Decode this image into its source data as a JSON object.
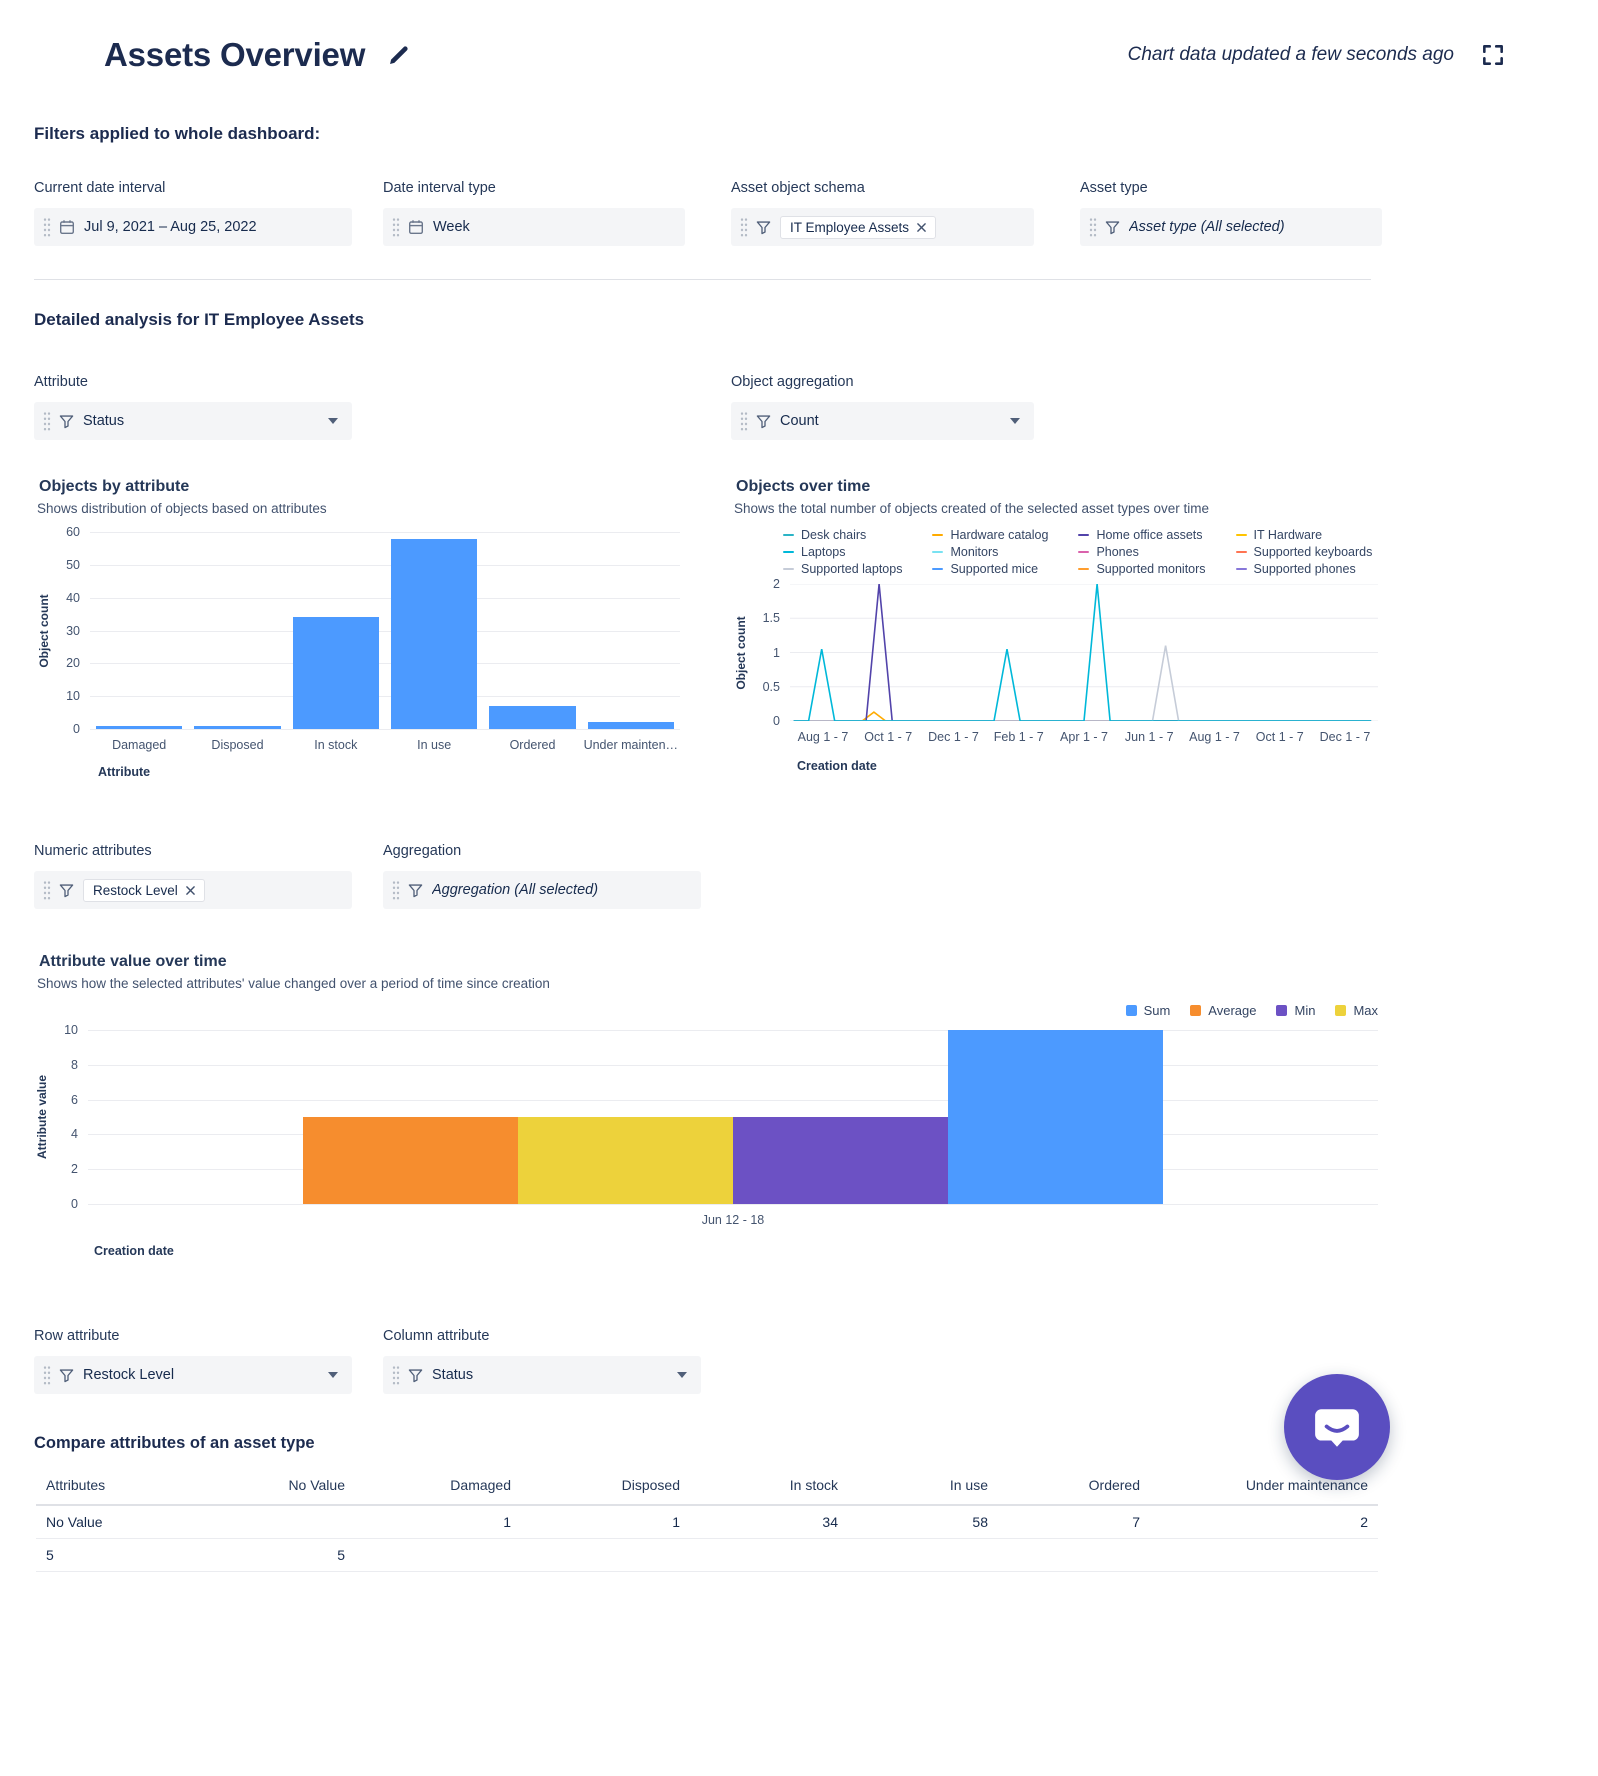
{
  "header": {
    "title": "Assets Overview",
    "updated_text": "Chart data updated a few seconds ago"
  },
  "filters_section": {
    "heading": "Filters applied to whole dashboard:",
    "date_interval": {
      "label": "Current date interval",
      "value": "Jul 9, 2021  –  Aug 25, 2022"
    },
    "interval_type": {
      "label": "Date interval type",
      "value": "Week"
    },
    "object_schema": {
      "label": "Asset object schema",
      "chip": "IT Employee Assets"
    },
    "asset_type": {
      "label": "Asset type",
      "value": "Asset type (All selected)"
    }
  },
  "analysis_section": {
    "heading": "Detailed analysis for IT Employee Assets",
    "attribute_filter": {
      "label": "Attribute",
      "value": "Status"
    },
    "object_aggregation": {
      "label": "Object aggregation",
      "value": "Count"
    },
    "numeric_attributes": {
      "label": "Numeric attributes",
      "chip": "Restock Level"
    },
    "aggregation": {
      "label": "Aggregation",
      "value": "Aggregation (All selected)"
    },
    "row_attribute": {
      "label": "Row attribute",
      "value": "Restock Level"
    },
    "column_attribute": {
      "label": "Column attribute",
      "value": "Status"
    }
  },
  "chart_data": [
    {
      "type": "bar",
      "title": "Objects by attribute",
      "subtitle": "Shows distribution of objects based on attributes",
      "categories": [
        "Damaged",
        "Disposed",
        "In stock",
        "In use",
        "Ordered",
        "Under mainten…"
      ],
      "values": [
        1,
        1,
        34,
        58,
        7,
        2
      ],
      "xlabel": "Attribute",
      "ylabel": "Object count",
      "ylim": [
        0,
        60
      ],
      "yticks": [
        0,
        10,
        20,
        30,
        40,
        50,
        60
      ],
      "bar_color": "#4C9AFF",
      "grid": true,
      "legend_position": "none"
    },
    {
      "type": "line",
      "title": "Objects over time",
      "subtitle": "Shows the total number of objects created of the selected asset types over time",
      "xlabel": "Creation date",
      "ylabel": "Object count",
      "ylim": [
        0,
        2
      ],
      "yticks": [
        0,
        0.5,
        1,
        1.5,
        2
      ],
      "xticks": [
        "Aug 1 - 7",
        "Oct 1 - 7",
        "Dec 1 - 7",
        "Feb 1 - 7",
        "Apr 1 - 7",
        "Jun 1 - 7",
        "Aug 1 - 7",
        "Oct 1 - 7",
        "Dec 1 - 7"
      ],
      "grid": true,
      "legend_position": "top",
      "legend": [
        {
          "name": "Desk chairs",
          "color": "#2BB4C6"
        },
        {
          "name": "Hardware catalog",
          "color": "#FFAB00"
        },
        {
          "name": "Home office assets",
          "color": "#5243AA"
        },
        {
          "name": "IT Hardware",
          "color": "#FFC400"
        },
        {
          "name": "Laptops",
          "color": "#00B8D9"
        },
        {
          "name": "Monitors",
          "color": "#79E2F2"
        },
        {
          "name": "Phones",
          "color": "#DA62AC"
        },
        {
          "name": "Supported keyboards",
          "color": "#FF7452"
        },
        {
          "name": "Supported laptops",
          "color": "#C6CCD8"
        },
        {
          "name": "Supported mice",
          "color": "#4C9AFF"
        },
        {
          "name": "Supported monitors",
          "color": "#FF9D2E"
        },
        {
          "name": "Supported phones",
          "color": "#8777D9"
        }
      ],
      "series": [
        {
          "name": "Supported phones",
          "points": [
            [
              -0.45,
              0
            ],
            [
              8.4,
              0
            ]
          ]
        },
        {
          "name": "Supported mice",
          "points": [
            [
              -0.45,
              0
            ],
            [
              8.4,
              0
            ]
          ]
        },
        {
          "name": "Hardware catalog",
          "points": [
            [
              -0.45,
              0
            ],
            [
              0.6,
              0
            ],
            [
              0.78,
              0.13
            ],
            [
              0.96,
              0
            ],
            [
              8.4,
              0
            ]
          ]
        },
        {
          "name": "Home office assets",
          "points": [
            [
              -0.45,
              0
            ],
            [
              0.66,
              0
            ],
            [
              0.86,
              2
            ],
            [
              1.06,
              0
            ],
            [
              8.4,
              0
            ]
          ]
        },
        {
          "name": "Supported laptops",
          "points": [
            [
              -0.45,
              0
            ],
            [
              5.05,
              0
            ],
            [
              5.25,
              1.1
            ],
            [
              5.45,
              0
            ],
            [
              8.4,
              0
            ]
          ]
        },
        {
          "name": "Laptops",
          "points": [
            [
              -0.45,
              0
            ],
            [
              -0.22,
              0
            ],
            [
              -0.02,
              1.05
            ],
            [
              0.18,
              0
            ],
            [
              2.62,
              0
            ],
            [
              2.82,
              1.05
            ],
            [
              3.02,
              0
            ],
            [
              4.0,
              0
            ],
            [
              4.2,
              2
            ],
            [
              4.4,
              0
            ],
            [
              8.4,
              0
            ]
          ]
        }
      ]
    },
    {
      "type": "bar",
      "title": "Attribute value over time",
      "subtitle": "Shows how the selected attributes' value changed over a period of time since creation",
      "categories": [
        "Jun 12 - 18"
      ],
      "xlabel": "Creation date",
      "ylabel": "Attribute value",
      "ylim": [
        0,
        10
      ],
      "yticks": [
        0,
        2,
        4,
        6,
        8,
        10
      ],
      "grid": true,
      "legend_position": "top-right",
      "legend": [
        {
          "name": "Sum",
          "color": "#4C9AFF"
        },
        {
          "name": "Average",
          "color": "#F68D2E"
        },
        {
          "name": "Min",
          "color": "#6C51C4"
        },
        {
          "name": "Max",
          "color": "#EDD23B"
        }
      ],
      "bars": [
        {
          "name": "Average",
          "value": 5,
          "color": "#F68D2E"
        },
        {
          "name": "Max",
          "value": 5,
          "color": "#EDD23B"
        },
        {
          "name": "Min",
          "value": 5,
          "color": "#6C51C4"
        },
        {
          "name": "Sum",
          "value": 10,
          "color": "#4C9AFF"
        }
      ]
    }
  ],
  "compare_table": {
    "heading": "Compare attributes of an asset type",
    "columns": [
      "Attributes",
      "No Value",
      "Damaged",
      "Disposed",
      "In stock",
      "In use",
      "Ordered",
      "Under maintenance"
    ],
    "rows": [
      [
        "No Value",
        "",
        "1",
        "1",
        "34",
        "58",
        "7",
        "2"
      ],
      [
        "5",
        "5",
        "",
        "",
        "",
        "",
        "",
        ""
      ]
    ]
  },
  "chat": {
    "color": "#5A4EC0"
  }
}
